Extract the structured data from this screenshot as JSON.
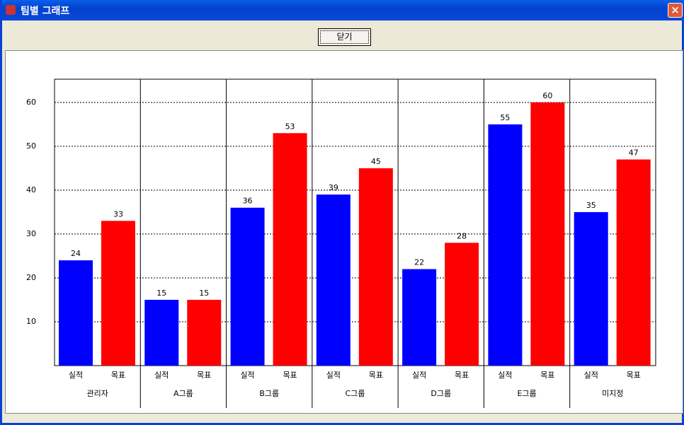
{
  "window": {
    "title": "팀별 그래프",
    "button": "닫기"
  },
  "chart_data": {
    "type": "bar",
    "categories": [
      "관리자",
      "A그룹",
      "B그룹",
      "C그룹",
      "D그룹",
      "E그룹",
      "미지정"
    ],
    "series": [
      {
        "name": "실적",
        "color": "#0000ff",
        "values": [
          24,
          15,
          36,
          39,
          22,
          55,
          35
        ]
      },
      {
        "name": "목표",
        "color": "#ff0000",
        "values": [
          33,
          15,
          53,
          45,
          28,
          60,
          47
        ]
      }
    ],
    "ylim": [
      0,
      65.3
    ],
    "yticks": [
      10,
      20,
      30,
      40,
      50,
      60
    ],
    "grid": true
  }
}
